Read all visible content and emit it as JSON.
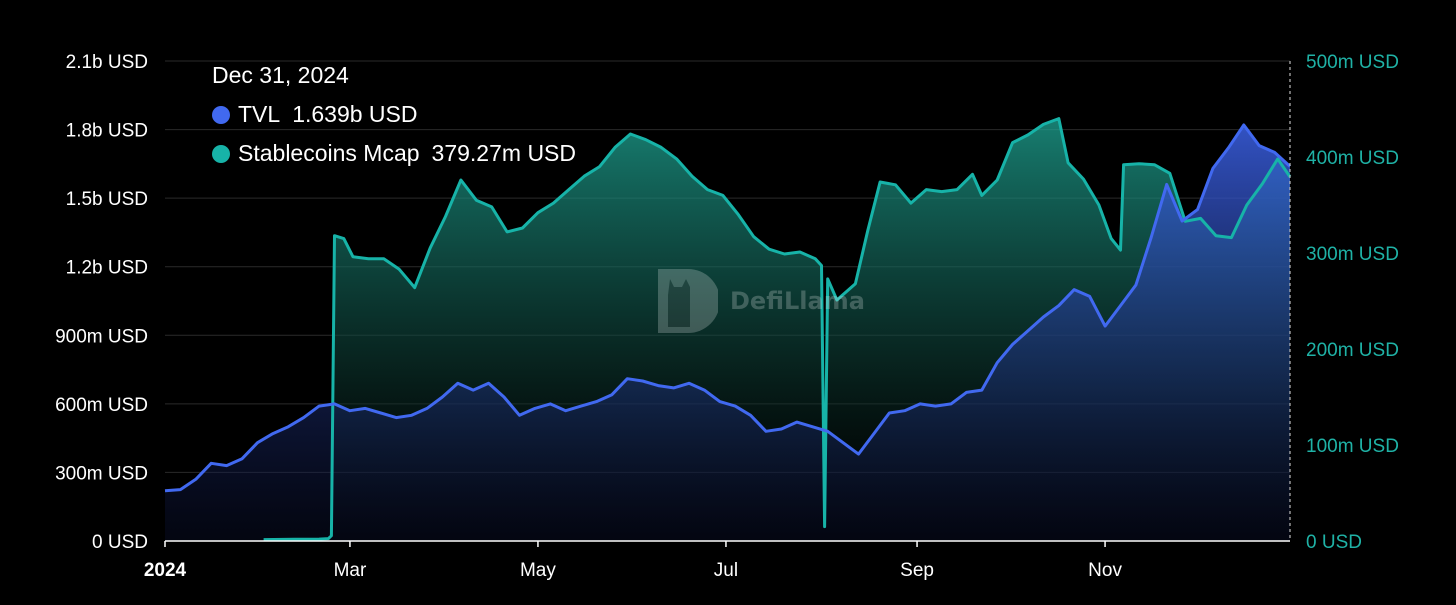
{
  "colors": {
    "tvl": "#4169f0",
    "stablecoins": "#17b3a8",
    "background": "#000000",
    "grid": "#2a2a2a"
  },
  "tooltip": {
    "date": "Dec 31, 2024",
    "series": [
      {
        "name": "TVL",
        "value": "1.639b USD"
      },
      {
        "name": "Stablecoins Mcap",
        "value": "379.27m USD"
      }
    ]
  },
  "watermark": {
    "text": "DefiLlama",
    "icon": "llama-logo-icon"
  },
  "chart_data": {
    "type": "area",
    "x_axis": {
      "ticks": [
        {
          "label": "2024",
          "date": "2024-01-01",
          "bold": true
        },
        {
          "label": "Mar",
          "date": "2024-03-01"
        },
        {
          "label": "May",
          "date": "2024-05-01"
        },
        {
          "label": "Jul",
          "date": "2024-07-01"
        },
        {
          "label": "Sep",
          "date": "2024-09-01"
        },
        {
          "label": "Nov",
          "date": "2024-11-01"
        }
      ],
      "range": [
        "2024-01-01",
        "2024-12-31"
      ]
    },
    "y_left": {
      "unit": "USD",
      "ylim": [
        0,
        2100000000
      ],
      "ticks": [
        {
          "value": 0,
          "label": "0 USD"
        },
        {
          "value": 300000000,
          "label": "300m USD"
        },
        {
          "value": 600000000,
          "label": "600m USD"
        },
        {
          "value": 900000000,
          "label": "900m USD"
        },
        {
          "value": 1200000000,
          "label": "1.2b USD"
        },
        {
          "value": 1500000000,
          "label": "1.5b USD"
        },
        {
          "value": 1800000000,
          "label": "1.8b USD"
        },
        {
          "value": 2100000000,
          "label": "2.1b USD"
        }
      ]
    },
    "y_right": {
      "unit": "USD",
      "ylim": [
        0,
        500000000
      ],
      "ticks": [
        {
          "value": 0,
          "label": "0 USD"
        },
        {
          "value": 100000000,
          "label": "100m USD"
        },
        {
          "value": 200000000,
          "label": "200m USD"
        },
        {
          "value": 300000000,
          "label": "300m USD"
        },
        {
          "value": 400000000,
          "label": "400m USD"
        },
        {
          "value": 500000000,
          "label": "500m USD"
        }
      ]
    },
    "grid": true,
    "series": [
      {
        "name": "TVL",
        "axis": "left",
        "points": [
          [
            "2024-01-01",
            220000000.0
          ],
          [
            "2024-01-06",
            225000000.0
          ],
          [
            "2024-01-11",
            270000000.0
          ],
          [
            "2024-01-16",
            340000000.0
          ],
          [
            "2024-01-21",
            330000000.0
          ],
          [
            "2024-01-26",
            360000000.0
          ],
          [
            "2024-01-31",
            430000000.0
          ],
          [
            "2024-02-05",
            470000000.0
          ],
          [
            "2024-02-10",
            500000000.0
          ],
          [
            "2024-02-15",
            540000000.0
          ],
          [
            "2024-02-20",
            590000000.0
          ],
          [
            "2024-02-25",
            600000000.0
          ],
          [
            "2024-03-01",
            570000000.0
          ],
          [
            "2024-03-06",
            580000000.0
          ],
          [
            "2024-03-11",
            560000000.0
          ],
          [
            "2024-03-16",
            540000000.0
          ],
          [
            "2024-03-21",
            550000000.0
          ],
          [
            "2024-03-26",
            580000000.0
          ],
          [
            "2024-03-31",
            630000000.0
          ],
          [
            "2024-04-05",
            690000000.0
          ],
          [
            "2024-04-10",
            660000000.0
          ],
          [
            "2024-04-15",
            690000000.0
          ],
          [
            "2024-04-20",
            630000000.0
          ],
          [
            "2024-04-25",
            550000000.0
          ],
          [
            "2024-04-30",
            580000000.0
          ],
          [
            "2024-05-05",
            600000000.0
          ],
          [
            "2024-05-10",
            570000000.0
          ],
          [
            "2024-05-15",
            590000000.0
          ],
          [
            "2024-05-20",
            610000000.0
          ],
          [
            "2024-05-25",
            640000000.0
          ],
          [
            "2024-05-30",
            710000000.0
          ],
          [
            "2024-06-04",
            700000000.0
          ],
          [
            "2024-06-09",
            680000000.0
          ],
          [
            "2024-06-14",
            670000000.0
          ],
          [
            "2024-06-19",
            690000000.0
          ],
          [
            "2024-06-24",
            660000000.0
          ],
          [
            "2024-06-29",
            610000000.0
          ],
          [
            "2024-07-04",
            590000000.0
          ],
          [
            "2024-07-09",
            550000000.0
          ],
          [
            "2024-07-14",
            480000000.0
          ],
          [
            "2024-07-19",
            490000000.0
          ],
          [
            "2024-07-24",
            520000000.0
          ],
          [
            "2024-07-29",
            500000000.0
          ],
          [
            "2024-08-03",
            480000000.0
          ],
          [
            "2024-08-08",
            430000000.0
          ],
          [
            "2024-08-13",
            380000000.0
          ],
          [
            "2024-08-18",
            470000000.0
          ],
          [
            "2024-08-23",
            560000000.0
          ],
          [
            "2024-08-28",
            570000000.0
          ],
          [
            "2024-09-02",
            600000000.0
          ],
          [
            "2024-09-07",
            590000000.0
          ],
          [
            "2024-09-12",
            600000000.0
          ],
          [
            "2024-09-17",
            650000000.0
          ],
          [
            "2024-09-22",
            660000000.0
          ],
          [
            "2024-09-27",
            780000000.0
          ],
          [
            "2024-10-02",
            860000000.0
          ],
          [
            "2024-10-07",
            920000000.0
          ],
          [
            "2024-10-12",
            980000000.0
          ],
          [
            "2024-10-17",
            1030000000.0
          ],
          [
            "2024-10-22",
            1100000000.0
          ],
          [
            "2024-10-27",
            1070000000.0
          ],
          [
            "2024-11-01",
            940000000.0
          ],
          [
            "2024-11-06",
            1030000000.0
          ],
          [
            "2024-11-11",
            1120000000.0
          ],
          [
            "2024-11-16",
            1330000000.0
          ],
          [
            "2024-11-21",
            1560000000.0
          ],
          [
            "2024-11-26",
            1400000000.0
          ],
          [
            "2024-12-01",
            1450000000.0
          ],
          [
            "2024-12-06",
            1630000000.0
          ],
          [
            "2024-12-11",
            1720000000.0
          ],
          [
            "2024-12-16",
            1820000000.0
          ],
          [
            "2024-12-21",
            1730000000.0
          ],
          [
            "2024-12-26",
            1700000000.0
          ],
          [
            "2024-12-31",
            1639000000.0
          ]
        ]
      },
      {
        "name": "Stablecoins Mcap",
        "axis": "right",
        "points": [
          [
            "2024-02-02",
            1500000.0
          ],
          [
            "2024-02-12",
            1800000.0
          ],
          [
            "2024-02-20",
            2000000.0
          ],
          [
            "2024-02-23",
            2500000.0
          ],
          [
            "2024-02-24",
            5500000.0
          ],
          [
            "2024-02-25",
            318000000.0
          ],
          [
            "2024-02-28",
            315000000.0
          ],
          [
            "2024-03-02",
            296000000.0
          ],
          [
            "2024-03-07",
            294000000.0
          ],
          [
            "2024-03-12",
            294000000.0
          ],
          [
            "2024-03-17",
            283000000.0
          ],
          [
            "2024-03-22",
            264000000.0
          ],
          [
            "2024-03-27",
            305000000.0
          ],
          [
            "2024-04-01",
            338000000.0
          ],
          [
            "2024-04-06",
            376000000.0
          ],
          [
            "2024-04-11",
            355000000.0
          ],
          [
            "2024-04-16",
            348000000.0
          ],
          [
            "2024-04-21",
            322000000.0
          ],
          [
            "2024-04-26",
            326000000.0
          ],
          [
            "2024-05-01",
            342000000.0
          ],
          [
            "2024-05-06",
            352000000.0
          ],
          [
            "2024-05-11",
            366000000.0
          ],
          [
            "2024-05-16",
            380000000.0
          ],
          [
            "2024-05-21",
            390000000.0
          ],
          [
            "2024-05-26",
            410000000.0
          ],
          [
            "2024-05-31",
            424000000.0
          ],
          [
            "2024-06-05",
            418000000.0
          ],
          [
            "2024-06-10",
            410000000.0
          ],
          [
            "2024-06-15",
            398000000.0
          ],
          [
            "2024-06-20",
            380000000.0
          ],
          [
            "2024-06-25",
            366000000.0
          ],
          [
            "2024-06-30",
            360000000.0
          ],
          [
            "2024-07-05",
            340000000.0
          ],
          [
            "2024-07-10",
            317000000.0
          ],
          [
            "2024-07-15",
            304000000.0
          ],
          [
            "2024-07-20",
            299000000.0
          ],
          [
            "2024-07-25",
            301000000.0
          ],
          [
            "2024-07-30",
            294000000.0
          ],
          [
            "2024-08-01",
            287000000.0
          ],
          [
            "2024-08-02",
            15000000.0
          ],
          [
            "2024-08-03",
            273000000.0
          ],
          [
            "2024-08-06",
            251000000.0
          ],
          [
            "2024-08-12",
            268000000.0
          ],
          [
            "2024-08-16",
            323000000.0
          ],
          [
            "2024-08-20",
            374000000.0
          ],
          [
            "2024-08-25",
            371000000.0
          ],
          [
            "2024-08-30",
            352000000.0
          ],
          [
            "2024-09-04",
            366000000.0
          ],
          [
            "2024-09-09",
            364000000.0
          ],
          [
            "2024-09-14",
            366000000.0
          ],
          [
            "2024-09-19",
            382000000.0
          ],
          [
            "2024-09-22",
            360000000.0
          ],
          [
            "2024-09-27",
            376000000.0
          ],
          [
            "2024-10-02",
            415000000.0
          ],
          [
            "2024-10-07",
            423000000.0
          ],
          [
            "2024-10-12",
            434000000.0
          ],
          [
            "2024-10-17",
            440000000.0
          ],
          [
            "2024-10-20",
            394000000.0
          ],
          [
            "2024-10-25",
            377000000.0
          ],
          [
            "2024-10-30",
            350000000.0
          ],
          [
            "2024-11-03",
            315000000.0
          ],
          [
            "2024-11-06",
            303000000.0
          ],
          [
            "2024-11-07",
            392000000.0
          ],
          [
            "2024-11-12",
            393000000.0
          ],
          [
            "2024-11-17",
            392000000.0
          ],
          [
            "2024-11-22",
            383000000.0
          ],
          [
            "2024-11-27",
            333000000.0
          ],
          [
            "2024-12-02",
            336000000.0
          ],
          [
            "2024-12-07",
            318000000.0
          ],
          [
            "2024-12-12",
            316000000.0
          ],
          [
            "2024-12-17",
            350000000.0
          ],
          [
            "2024-12-22",
            372000000.0
          ],
          [
            "2024-12-27",
            398000000.0
          ],
          [
            "2024-12-31",
            379270000.0
          ]
        ]
      }
    ]
  }
}
